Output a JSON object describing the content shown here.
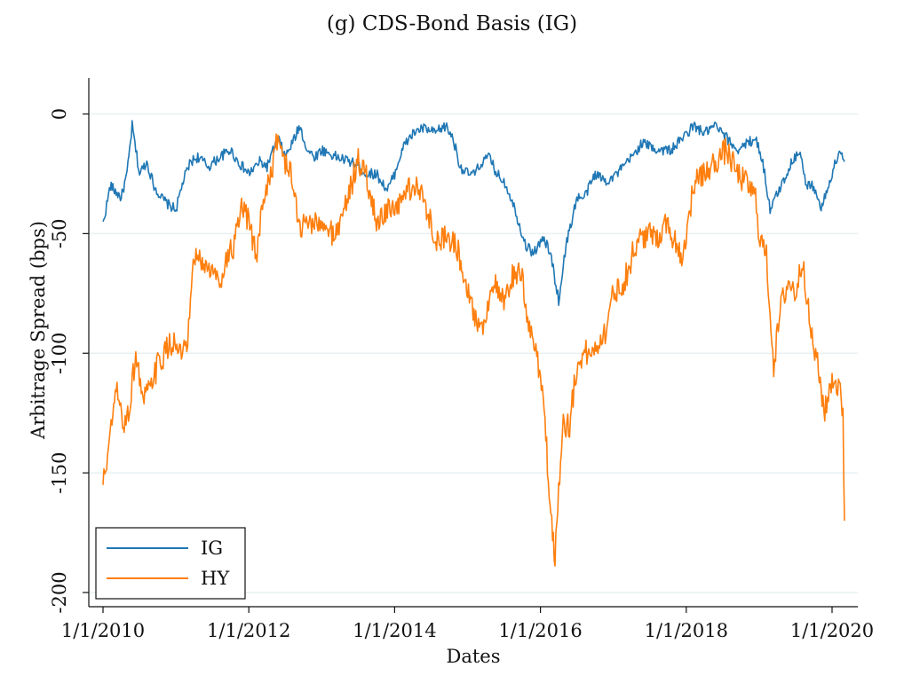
{
  "chart_data": {
    "type": "line",
    "title": "(g) CDS-Bond Basis (IG)",
    "xlabel": "Dates",
    "ylabel": "Arbitrage Spread (bps)",
    "x_ticks": [
      "1/1/2010",
      "1/1/2012",
      "1/1/2014",
      "1/1/2016",
      "1/1/2018",
      "1/1/2020"
    ],
    "y_ticks": [
      0,
      -50,
      -100,
      -150,
      -200
    ],
    "ylim": [
      -206,
      15
    ],
    "xlim_years": [
      2009.8,
      2020.35
    ],
    "grid": "horizontal",
    "legend_position": "bottom-left",
    "series": [
      {
        "name": "IG",
        "color": "#1f77b4",
        "x": [
          2010.0,
          2010.1,
          2010.25,
          2010.33,
          2010.4,
          2010.5,
          2010.6,
          2010.7,
          2010.8,
          2010.9,
          2011.0,
          2011.1,
          2011.2,
          2011.3,
          2011.45,
          2011.6,
          2011.75,
          2011.85,
          2012.0,
          2012.15,
          2012.25,
          2012.4,
          2012.5,
          2012.6,
          2012.7,
          2012.8,
          2012.9,
          2013.0,
          2013.2,
          2013.4,
          2013.5,
          2013.6,
          2013.75,
          2013.9,
          2014.0,
          2014.1,
          2014.2,
          2014.3,
          2014.4,
          2014.55,
          2014.7,
          2014.8,
          2014.9,
          2015.0,
          2015.1,
          2015.2,
          2015.3,
          2015.4,
          2015.5,
          2015.6,
          2015.7,
          2015.8,
          2015.9,
          2016.05,
          2016.15,
          2016.25,
          2016.35,
          2016.5,
          2016.6,
          2016.75,
          2016.9,
          2017.05,
          2017.2,
          2017.4,
          2017.6,
          2017.8,
          2017.95,
          2018.1,
          2018.25,
          2018.4,
          2018.55,
          2018.7,
          2018.85,
          2018.95,
          2019.05,
          2019.15,
          2019.3,
          2019.45,
          2019.55,
          2019.65,
          2019.75,
          2019.85,
          2020.0,
          2020.1,
          2020.17
        ],
        "y": [
          -46,
          -30,
          -35,
          -25,
          -5,
          -25,
          -20,
          -30,
          -35,
          -38,
          -40,
          -28,
          -20,
          -18,
          -22,
          -18,
          -15,
          -20,
          -25,
          -20,
          -22,
          -10,
          -18,
          -12,
          -5,
          -15,
          -18,
          -15,
          -18,
          -20,
          -22,
          -25,
          -25,
          -32,
          -25,
          -15,
          -10,
          -7,
          -6,
          -8,
          -5,
          -10,
          -22,
          -25,
          -25,
          -20,
          -18,
          -25,
          -28,
          -35,
          -45,
          -55,
          -58,
          -52,
          -60,
          -78,
          -55,
          -35,
          -35,
          -25,
          -28,
          -25,
          -20,
          -12,
          -15,
          -15,
          -10,
          -5,
          -8,
          -5,
          -10,
          -15,
          -12,
          -10,
          -20,
          -40,
          -30,
          -20,
          -15,
          -30,
          -30,
          -40,
          -25,
          -15,
          -20
        ]
      },
      {
        "name": "HY",
        "color": "#ff7f0e",
        "x": [
          2010.0,
          2010.1,
          2010.18,
          2010.28,
          2010.35,
          2010.45,
          2010.55,
          2010.65,
          2010.75,
          2010.85,
          2010.95,
          2011.05,
          2011.15,
          2011.25,
          2011.35,
          2011.5,
          2011.6,
          2011.7,
          2011.8,
          2011.9,
          2012.0,
          2012.1,
          2012.2,
          2012.3,
          2012.4,
          2012.5,
          2012.6,
          2012.7,
          2012.8,
          2012.9,
          2013.0,
          2013.2,
          2013.35,
          2013.5,
          2013.6,
          2013.75,
          2013.9,
          2014.0,
          2014.15,
          2014.3,
          2014.45,
          2014.6,
          2014.7,
          2014.85,
          2015.0,
          2015.1,
          2015.2,
          2015.35,
          2015.5,
          2015.65,
          2015.75,
          2015.85,
          2015.95,
          2016.05,
          2016.12,
          2016.2,
          2016.3,
          2016.4,
          2016.5,
          2016.6,
          2016.7,
          2016.8,
          2016.9,
          2017.0,
          2017.15,
          2017.3,
          2017.45,
          2017.6,
          2017.7,
          2017.8,
          2017.95,
          2018.1,
          2018.25,
          2018.4,
          2018.55,
          2018.7,
          2018.85,
          2018.95,
          2019.0,
          2019.1,
          2019.2,
          2019.3,
          2019.4,
          2019.5,
          2019.6,
          2019.7,
          2019.8,
          2019.9,
          2020.0,
          2020.1,
          2020.15,
          2020.17
        ],
        "y": [
          -155,
          -135,
          -115,
          -130,
          -125,
          -100,
          -120,
          -115,
          -105,
          -100,
          -95,
          -100,
          -100,
          -60,
          -62,
          -66,
          -70,
          -60,
          -55,
          -40,
          -45,
          -60,
          -35,
          -25,
          -10,
          -20,
          -28,
          -48,
          -45,
          -45,
          -48,
          -50,
          -35,
          -20,
          -25,
          -45,
          -40,
          -42,
          -32,
          -30,
          -40,
          -55,
          -50,
          -55,
          -72,
          -85,
          -90,
          -70,
          -80,
          -65,
          -70,
          -90,
          -100,
          -120,
          -160,
          -185,
          -130,
          -130,
          -105,
          -100,
          -100,
          -95,
          -90,
          -75,
          -70,
          -55,
          -50,
          -52,
          -45,
          -50,
          -60,
          -30,
          -25,
          -20,
          -15,
          -25,
          -30,
          -35,
          -50,
          -60,
          -105,
          -80,
          -70,
          -75,
          -60,
          -90,
          -105,
          -125,
          -110,
          -115,
          -125,
          -170
        ]
      }
    ]
  }
}
